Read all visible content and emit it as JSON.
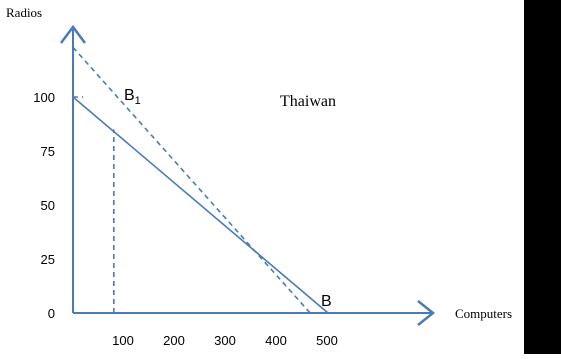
{
  "chart_data": {
    "type": "line",
    "title": "",
    "xlabel": "Computers",
    "ylabel": "Radios",
    "xlim": [
      0,
      500
    ],
    "ylim": [
      0,
      100
    ],
    "x_ticks": [
      "100",
      "200",
      "300",
      "400",
      "500"
    ],
    "y_ticks": [
      "0",
      "25",
      "50",
      "75",
      "100"
    ],
    "lines": [
      {
        "id": "ppf",
        "style": "solid",
        "points": [
          [
            0,
            100
          ],
          [
            500,
            0
          ]
        ]
      },
      {
        "id": "tradeline",
        "style": "dashed",
        "points": [
          [
            0,
            123
          ],
          [
            465,
            0
          ]
        ]
      },
      {
        "id": "guide-horizontal",
        "style": "dashed",
        "points": [
          [
            0,
            100
          ],
          [
            20,
            100
          ]
        ]
      },
      {
        "id": "guide-vertical",
        "style": "dashed",
        "points": [
          [
            80,
            0
          ],
          [
            80,
            85
          ]
        ]
      }
    ],
    "points": [
      {
        "label_main": "B",
        "label_sub": "1",
        "x": 45,
        "y": 100
      },
      {
        "label_main": "B",
        "label_sub": "",
        "x": 500,
        "y": 2
      }
    ],
    "annotations": [
      {
        "text": "Thaiwan",
        "x": 285,
        "y": 98
      }
    ],
    "colors": {
      "line": "#4a7ab9",
      "text": "#000000"
    }
  }
}
